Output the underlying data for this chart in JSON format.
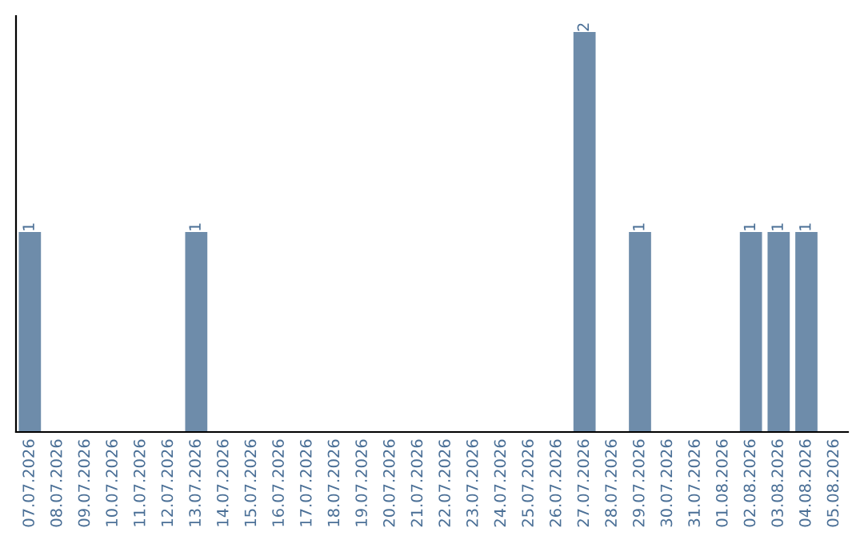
{
  "chart_data": {
    "type": "bar",
    "categories": [
      "07.07.2026",
      "08.07.2026",
      "09.07.2026",
      "10.07.2026",
      "11.07.2026",
      "12.07.2026",
      "13.07.2026",
      "14.07.2026",
      "15.07.2026",
      "16.07.2026",
      "17.07.2026",
      "18.07.2026",
      "19.07.2026",
      "20.07.2026",
      "21.07.2026",
      "22.07.2026",
      "23.07.2026",
      "24.07.2026",
      "25.07.2026",
      "26.07.2026",
      "27.07.2026",
      "28.07.2026",
      "29.07.2026",
      "30.07.2026",
      "31.07.2026",
      "01.08.2026",
      "02.08.2026",
      "03.08.2026",
      "04.08.2026",
      "05.08.2026"
    ],
    "values": [
      1,
      0,
      0,
      0,
      0,
      0,
      1,
      0,
      0,
      0,
      0,
      0,
      0,
      0,
      0,
      0,
      0,
      0,
      0,
      0,
      2,
      0,
      1,
      0,
      0,
      0,
      1,
      1,
      1,
      0
    ],
    "value_labels": [
      "1",
      null,
      null,
      null,
      null,
      null,
      "1",
      null,
      null,
      null,
      null,
      null,
      null,
      null,
      null,
      null,
      null,
      null,
      null,
      null,
      "2",
      null,
      "1",
      null,
      null,
      null,
      "1",
      "1",
      "1",
      null
    ],
    "color": "#6e8caa",
    "ylim": [
      0,
      2.08
    ],
    "tick_labels": "x",
    "grid": false,
    "legend": false
  }
}
